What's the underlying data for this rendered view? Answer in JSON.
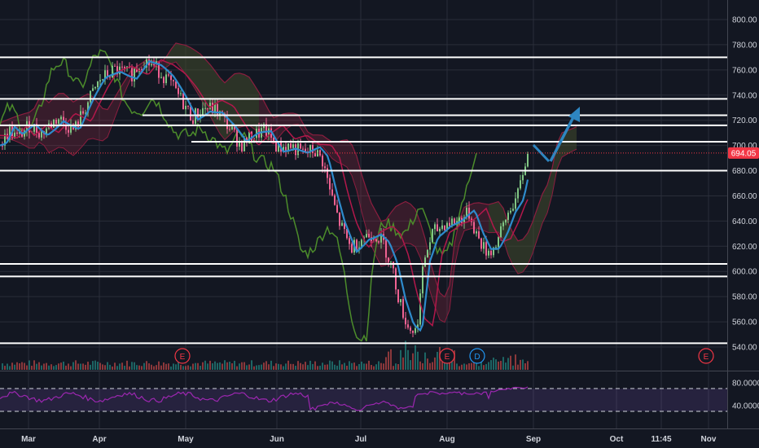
{
  "chart_data": {
    "type": "candlestick",
    "y_axis": {
      "ticks": [
        "800.00",
        "780.00",
        "760.00",
        "740.00",
        "720.00",
        "700.00",
        "680.00",
        "660.00",
        "640.00",
        "620.00",
        "600.00",
        "580.00",
        "560.00",
        "540.00"
      ],
      "range": [
        536,
        808
      ],
      "current_price": "694.05"
    },
    "x_axis": {
      "labels": [
        "Mar",
        "Apr",
        "May",
        "Jun",
        "Jul",
        "Aug",
        "Sep",
        "Oct",
        "11:45",
        "Nov"
      ]
    },
    "horizontal_levels": [
      770,
      737,
      724,
      716,
      703,
      680,
      606,
      596,
      543
    ],
    "price_path": [
      [
        "Mar",
        700
      ],
      [
        "Mar",
        712
      ],
      [
        "Mar",
        708
      ],
      [
        "Mar",
        716
      ],
      [
        "Mar",
        714
      ],
      [
        "Mar",
        720
      ],
      [
        "Apr",
        738
      ],
      [
        "Apr",
        752
      ],
      [
        "Apr",
        764
      ],
      [
        "Apr",
        758
      ],
      [
        "Apr",
        770
      ],
      [
        "Apr",
        762
      ],
      [
        "May",
        740
      ],
      [
        "May",
        728
      ],
      [
        "May",
        722
      ],
      [
        "May",
        718
      ],
      [
        "May",
        734
      ],
      [
        "May",
        730
      ],
      [
        "Jun",
        704
      ],
      [
        "Jun",
        712
      ],
      [
        "Jun",
        698
      ],
      [
        "Jun",
        694
      ],
      [
        "Jun",
        702
      ],
      [
        "Jun",
        690
      ],
      [
        "Jul",
        640
      ],
      [
        "Jul",
        622
      ],
      [
        "Jul",
        620
      ],
      [
        "Jul",
        604
      ],
      [
        "Jul",
        560
      ],
      [
        "Jul",
        550
      ],
      [
        "Aug",
        614
      ],
      [
        "Aug",
        632
      ],
      [
        "Aug",
        640
      ],
      [
        "Aug",
        642
      ],
      [
        "Aug",
        624
      ],
      [
        "Aug",
        616
      ],
      [
        "Sep",
        640
      ],
      [
        "Sep",
        660
      ],
      [
        "Sep",
        694
      ]
    ],
    "ichimoku_lagging_span": [
      [
        700,
        722
      ],
      [
        715,
        740
      ],
      [
        730,
        760
      ],
      [
        740,
        755
      ],
      [
        752,
        732
      ],
      [
        764,
        710
      ],
      [
        770,
        728
      ],
      [
        740,
        742
      ],
      [
        726,
        705
      ],
      [
        718,
        690
      ],
      [
        705,
        680
      ],
      [
        702,
        710
      ],
      [
        690,
        708
      ],
      [
        670,
        640
      ],
      [
        650,
        620
      ],
      [
        620,
        560
      ],
      [
        600,
        550
      ],
      [
        622,
        648
      ],
      [
        630,
        640
      ],
      [
        644,
        662
      ],
      [
        660,
        694
      ]
    ],
    "earnings_markers": [
      {
        "label": "E"
      },
      {
        "label": "E"
      },
      {
        "label": "D"
      },
      {
        "label": "E"
      }
    ],
    "rsi_panel": {
      "ticks": [
        "80.0000",
        "40.0000"
      ],
      "bands": [
        70,
        30
      ]
    }
  }
}
